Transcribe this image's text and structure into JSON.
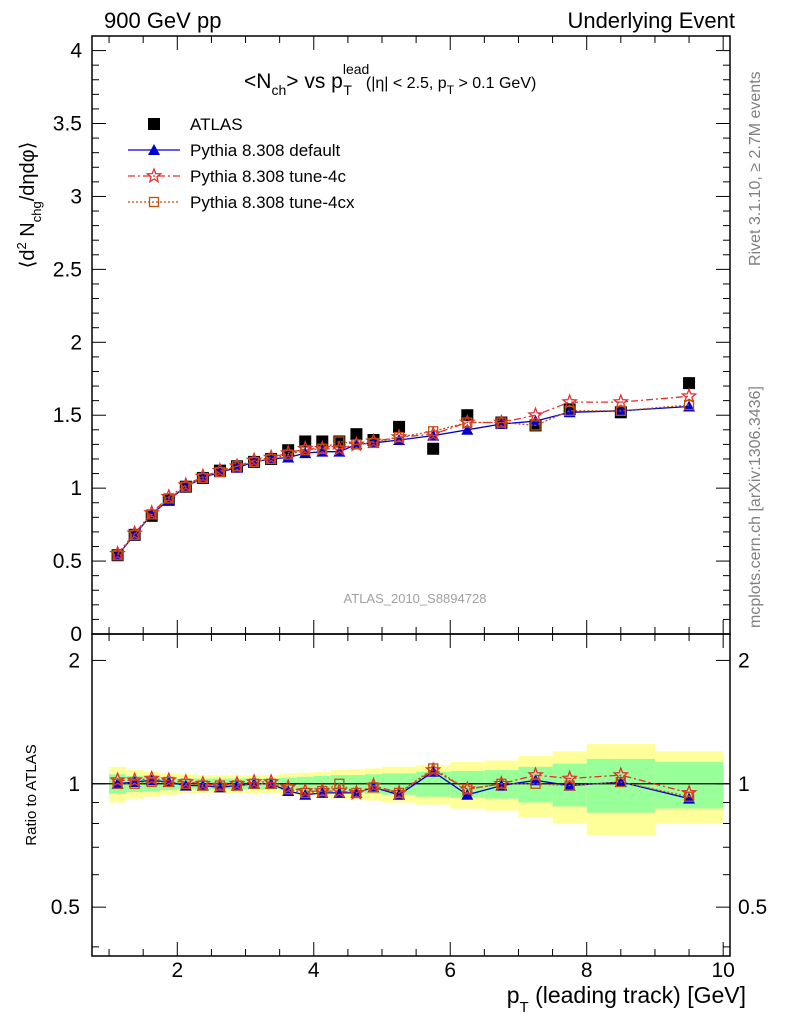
{
  "header": {
    "left": "900 GeV pp",
    "right": "Underlying Event"
  },
  "plot_title": {
    "main": "<N",
    "main_sub": "ch",
    "vs": "> vs p",
    "vs_sup": "lead",
    "vs_sub": "T",
    "cuts": "(|η| < 2.5, p",
    "cuts_sub": "T",
    "cuts_end": " > 0.1 GeV)"
  },
  "y_label": {
    "a": "⟨d",
    "sup": "2",
    "b": " N",
    "sub": "chg",
    "c": "/dηdφ⟩"
  },
  "ratio_y_label": "Ratio to ATLAS",
  "x_label": {
    "a": "p",
    "sub": "T",
    "b": " (leading track) [GeV]"
  },
  "side_notes": {
    "rivet": "Rivet 3.1.10, ≥ 2.7M events",
    "mcplots": "mcplots.cern.ch [arXiv:1306.3436]"
  },
  "watermark": "ATLAS_2010_S8894728",
  "legend": [
    {
      "label": "ATLAS",
      "color": "#000000",
      "marker": "square"
    },
    {
      "label": "Pythia 8.308 default",
      "color": "#0000cc",
      "marker": "triangle"
    },
    {
      "label": "Pythia 8.308 tune-4c",
      "color": "#e03030",
      "marker": "star"
    },
    {
      "label": "Pythia 8.308 tune-4cx",
      "color": "#c05010",
      "marker": "open-square"
    }
  ],
  "colors": {
    "band_inner": "#99ff99",
    "band_outer": "#ffff99"
  },
  "chart_data": {
    "type": "scatter",
    "x": [
      1.125,
      1.375,
      1.625,
      1.875,
      2.125,
      2.375,
      2.625,
      2.875,
      3.125,
      3.375,
      3.625,
      3.875,
      4.125,
      4.375,
      4.625,
      4.875,
      5.25,
      5.75,
      6.25,
      6.75,
      7.25,
      7.75,
      8.5,
      9.5
    ],
    "x_bins": [
      [
        1.0,
        1.25
      ],
      [
        1.25,
        1.5
      ],
      [
        1.5,
        1.75
      ],
      [
        1.75,
        2.0
      ],
      [
        2.0,
        2.25
      ],
      [
        2.25,
        2.5
      ],
      [
        2.5,
        2.75
      ],
      [
        2.75,
        3.0
      ],
      [
        3.0,
        3.25
      ],
      [
        3.25,
        3.5
      ],
      [
        3.5,
        3.75
      ],
      [
        3.75,
        4.0
      ],
      [
        4.0,
        4.25
      ],
      [
        4.25,
        4.5
      ],
      [
        4.5,
        4.75
      ],
      [
        4.75,
        5.0
      ],
      [
        5.0,
        5.5
      ],
      [
        5.5,
        6.0
      ],
      [
        6.0,
        6.5
      ],
      [
        6.5,
        7.0
      ],
      [
        7.0,
        7.5
      ],
      [
        7.5,
        8.0
      ],
      [
        8.0,
        9.0
      ],
      [
        9.0,
        10.0
      ]
    ],
    "xlim": [
      0.75,
      10.1
    ],
    "xticks": [
      2,
      4,
      6,
      8,
      10
    ],
    "xlabel": "p_T (leading track) [GeV]",
    "top_panel": {
      "ylabel": "⟨d² N_chg/dηdφ⟩",
      "ylim": [
        0,
        4.1
      ],
      "yticks": [
        0,
        0.5,
        1,
        1.5,
        2,
        2.5,
        3,
        3.5,
        4
      ],
      "series": [
        {
          "name": "ATLAS",
          "values": [
            0.54,
            0.68,
            0.81,
            0.92,
            1.01,
            1.07,
            1.12,
            1.15,
            1.18,
            1.2,
            1.26,
            1.32,
            1.32,
            1.32,
            1.37,
            1.33,
            1.42,
            1.27,
            1.5,
            1.45,
            1.43,
            1.54,
            1.52,
            1.72
          ]
        },
        {
          "name": "Pythia 8.308 default",
          "values": [
            0.54,
            0.68,
            0.82,
            0.92,
            1.01,
            1.07,
            1.11,
            1.14,
            1.18,
            1.2,
            1.21,
            1.24,
            1.25,
            1.25,
            1.3,
            1.31,
            1.33,
            1.36,
            1.4,
            1.44,
            1.46,
            1.52,
            1.53,
            1.56
          ]
        },
        {
          "name": "Pythia 8.308 tune-4c",
          "values": [
            0.55,
            0.69,
            0.83,
            0.94,
            1.02,
            1.08,
            1.12,
            1.15,
            1.19,
            1.21,
            1.24,
            1.27,
            1.27,
            1.27,
            1.3,
            1.32,
            1.35,
            1.37,
            1.45,
            1.45,
            1.5,
            1.59,
            1.59,
            1.63
          ]
        },
        {
          "name": "Pythia 8.308 tune-4cx",
          "values": [
            0.54,
            0.68,
            0.82,
            0.93,
            1.01,
            1.07,
            1.11,
            1.15,
            1.18,
            1.2,
            1.23,
            1.26,
            1.27,
            1.32,
            1.3,
            1.31,
            1.35,
            1.39,
            1.45,
            1.45,
            1.43,
            1.53,
            1.53,
            1.57
          ]
        }
      ]
    },
    "ratio_panel": {
      "ylabel": "Ratio to ATLAS",
      "ylim": [
        0.38,
        2.32
      ],
      "yticks": [
        0.5,
        1,
        2
      ],
      "inner_band": [
        0.055,
        0.045,
        0.04,
        0.035,
        0.03,
        0.03,
        0.03,
        0.03,
        0.03,
        0.03,
        0.035,
        0.04,
        0.045,
        0.05,
        0.05,
        0.055,
        0.06,
        0.07,
        0.075,
        0.08,
        0.1,
        0.12,
        0.15,
        0.13
      ],
      "outer_band": [
        0.1,
        0.08,
        0.07,
        0.06,
        0.055,
        0.05,
        0.05,
        0.05,
        0.05,
        0.05,
        0.06,
        0.065,
        0.07,
        0.08,
        0.085,
        0.09,
        0.1,
        0.11,
        0.13,
        0.14,
        0.17,
        0.2,
        0.25,
        0.2
      ],
      "series": [
        {
          "name": "Pythia 8.308 default",
          "values": [
            1.0,
            1.01,
            1.02,
            1.01,
            0.99,
            0.99,
            0.98,
            0.99,
            1.0,
            1.0,
            0.96,
            0.94,
            0.95,
            0.95,
            0.95,
            0.98,
            0.94,
            1.07,
            0.94,
            0.99,
            1.02,
            0.99,
            1.01,
            0.92
          ]
        },
        {
          "name": "Pythia 8.308 tune-4c",
          "values": [
            1.02,
            1.02,
            1.03,
            1.02,
            1.01,
            1.0,
            0.99,
            1.0,
            1.01,
            1.01,
            0.98,
            0.96,
            0.96,
            0.96,
            0.95,
            0.99,
            0.95,
            1.08,
            0.97,
            1.0,
            1.05,
            1.03,
            1.05,
            0.95
          ]
        },
        {
          "name": "Pythia 8.308 tune-4cx",
          "values": [
            1.0,
            1.0,
            1.01,
            1.01,
            1.0,
            0.99,
            0.99,
            0.99,
            1.0,
            1.0,
            0.97,
            0.95,
            0.96,
            1.0,
            0.95,
            0.98,
            0.95,
            1.09,
            0.97,
            1.0,
            1.0,
            0.99,
            1.01,
            0.93
          ]
        }
      ]
    }
  }
}
